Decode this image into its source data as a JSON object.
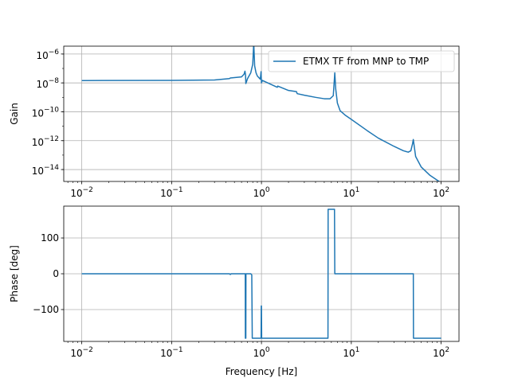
{
  "line_color": "#1f77b4",
  "chart_data": [
    {
      "type": "line",
      "xscale": "log",
      "yscale": "log",
      "xlim": [
        0.0063,
        158
      ],
      "ylim": [
        1.5e-15,
        3.5e-06
      ],
      "grid": true,
      "ylabel": "Gain",
      "xticks": [
        0.01,
        0.1,
        1,
        10,
        100
      ],
      "xtick_labels": [
        {
          "base": "10",
          "exp": "−2"
        },
        {
          "base": "10",
          "exp": "−1"
        },
        {
          "base": "10",
          "exp": "0"
        },
        {
          "base": "10",
          "exp": "1"
        },
        {
          "base": "10",
          "exp": "2"
        }
      ],
      "yticks": [
        1e-14,
        1e-12,
        1e-10,
        1e-08,
        1e-06
      ],
      "ytick_labels": [
        {
          "base": "10",
          "exp": "−14"
        },
        {
          "base": "10",
          "exp": "−12"
        },
        {
          "base": "10",
          "exp": "−10"
        },
        {
          "base": "10",
          "exp": "−8"
        },
        {
          "base": "10",
          "exp": "−6"
        }
      ],
      "legend": {
        "position": "upper-right",
        "label": "ETMX TF from MNP to TMP"
      },
      "series": [
        {
          "name": "ETMX TF from MNP to TMP",
          "x": [
            0.01,
            0.1,
            0.3,
            0.44,
            0.45,
            0.6,
            0.64,
            0.655,
            0.665,
            0.67,
            0.7,
            0.76,
            0.8,
            0.82,
            0.84,
            0.87,
            0.9,
            0.97,
            0.99,
            1.0,
            1.02,
            1.1,
            1.5,
            1.52,
            2.0,
            2.45,
            2.5,
            3.0,
            4.0,
            5.0,
            5.8,
            6.3,
            6.55,
            6.7,
            7.0,
            7.5,
            8.5,
            10,
            15,
            20,
            30,
            38,
            43,
            46,
            48,
            49,
            52,
            60,
            75,
            100
          ],
          "y": [
            1.45e-08,
            1.5e-08,
            1.6e-08,
            2e-08,
            2.2e-08,
            2.6e-08,
            4e-08,
            6.5e-08,
            3.5e-08,
            9e-09,
            2e-08,
            5e-08,
            2e-07,
            6e-06,
            1.5e-07,
            5e-08,
            3e-08,
            1.8e-08,
            6e-08,
            1e-08,
            1.5e-08,
            1.2e-08,
            5e-09,
            6e-09,
            3e-09,
            2.5e-09,
            1.8e-09,
            1.4e-09,
            1e-09,
            8e-10,
            8e-10,
            1.3e-09,
            5e-08,
            4e-09,
            4e-10,
            1.2e-10,
            6e-11,
            3e-11,
            5e-12,
            1.5e-12,
            4e-13,
            2e-13,
            1.6e-13,
            2e-13,
            6e-13,
            1.2e-12,
            8e-14,
            1.5e-14,
            4e-15,
            1.2e-15
          ]
        }
      ]
    },
    {
      "type": "line",
      "xscale": "log",
      "yscale": "linear",
      "xlim": [
        0.0063,
        158
      ],
      "ylim": [
        -189,
        189
      ],
      "grid": true,
      "xlabel": "Frequency [Hz]",
      "ylabel": "Phase [deg]",
      "xticks": [
        0.01,
        0.1,
        1,
        10,
        100
      ],
      "xtick_labels": [
        {
          "base": "10",
          "exp": "−2"
        },
        {
          "base": "10",
          "exp": "−1"
        },
        {
          "base": "10",
          "exp": "0"
        },
        {
          "base": "10",
          "exp": "1"
        },
        {
          "base": "10",
          "exp": "2"
        }
      ],
      "yticks": [
        -100,
        0,
        100
      ],
      "ytick_labels": [
        "−100",
        "0",
        "100"
      ],
      "series": [
        {
          "name": "",
          "x": [
            0.01,
            0.44,
            0.45,
            0.46,
            0.66,
            0.662,
            0.67,
            0.672,
            0.7,
            0.76,
            0.78,
            0.79,
            0.8,
            0.99,
            0.995,
            1.0,
            1.005,
            5.5,
            5.52,
            6.5,
            6.55,
            6.6,
            49,
            49.2,
            100
          ],
          "y": [
            0,
            0,
            -2,
            0,
            0,
            -180,
            -180,
            0,
            0,
            0,
            -3,
            -180,
            -180,
            -180,
            -90,
            -90,
            -180,
            -180,
            180,
            180,
            0,
            0,
            0,
            -180,
            -180
          ]
        }
      ]
    }
  ]
}
